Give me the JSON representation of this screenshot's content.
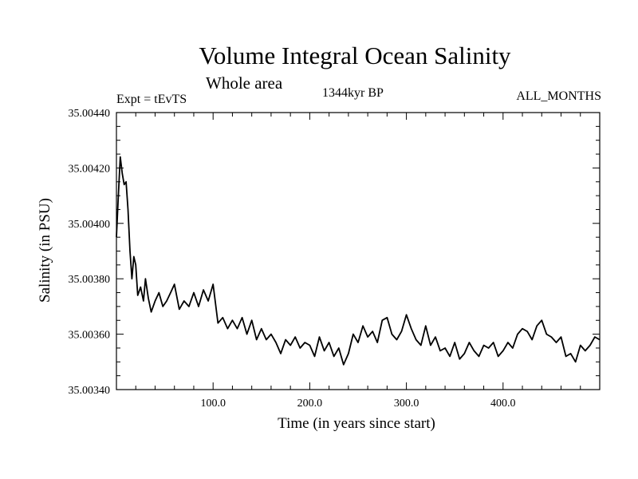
{
  "chart_data": {
    "type": "line",
    "title": "Volume Integral Ocean Salinity",
    "subtitle": "Whole area",
    "annotations": {
      "left": "Expt = tEvTS",
      "center": "1344kyr BP",
      "right": "ALL_MONTHS"
    },
    "xlabel": "Time (in years since start)",
    "ylabel": "Salinity (in PSU)",
    "xlim": [
      0,
      500
    ],
    "ylim": [
      35.0034,
      35.0044
    ],
    "x_ticks": [
      100,
      200,
      300,
      400
    ],
    "x_tick_labels": [
      "100.0",
      "200.0",
      "300.0",
      "400.0"
    ],
    "y_ticks": [
      35.0034,
      35.0036,
      35.0038,
      35.004,
      35.0042,
      35.0044
    ],
    "y_tick_labels": [
      "35.00340",
      "35.00360",
      "35.00380",
      "35.00400",
      "35.00420",
      "35.00440"
    ],
    "series": [
      {
        "name": "Salinity",
        "color": "#000000",
        "x": [
          0,
          2,
          4,
          6,
          8,
          10,
          12,
          14,
          16,
          18,
          20,
          22,
          25,
          28,
          30,
          33,
          36,
          40,
          44,
          48,
          52,
          56,
          60,
          65,
          70,
          75,
          80,
          85,
          90,
          95,
          100,
          105,
          110,
          115,
          120,
          125,
          130,
          135,
          140,
          145,
          150,
          155,
          160,
          165,
          170,
          175,
          180,
          185,
          190,
          195,
          200,
          205,
          210,
          215,
          220,
          225,
          230,
          235,
          240,
          245,
          250,
          255,
          260,
          265,
          270,
          275,
          280,
          285,
          290,
          295,
          300,
          305,
          310,
          315,
          320,
          325,
          330,
          335,
          340,
          345,
          350,
          355,
          360,
          365,
          370,
          375,
          380,
          385,
          390,
          395,
          400,
          405,
          410,
          415,
          420,
          425,
          430,
          435,
          440,
          445,
          450,
          455,
          460,
          465,
          470,
          475,
          480,
          485,
          490,
          495,
          500
        ],
        "y": [
          35.00395,
          35.0041,
          35.00424,
          35.00418,
          35.00414,
          35.00415,
          35.00405,
          35.0039,
          35.0038,
          35.00388,
          35.00385,
          35.00374,
          35.00377,
          35.00372,
          35.0038,
          35.00373,
          35.00368,
          35.00372,
          35.00375,
          35.0037,
          35.00372,
          35.00375,
          35.00378,
          35.00369,
          35.00372,
          35.0037,
          35.00375,
          35.0037,
          35.00376,
          35.00372,
          35.00378,
          35.00364,
          35.00366,
          35.00362,
          35.00365,
          35.00362,
          35.00366,
          35.0036,
          35.00365,
          35.00358,
          35.00362,
          35.00358,
          35.0036,
          35.00357,
          35.00353,
          35.00358,
          35.00356,
          35.00359,
          35.00355,
          35.00357,
          35.00356,
          35.00352,
          35.00359,
          35.00354,
          35.00357,
          35.00352,
          35.00355,
          35.00349,
          35.00353,
          35.0036,
          35.00357,
          35.00363,
          35.00359,
          35.00361,
          35.00357,
          35.00365,
          35.00366,
          35.0036,
          35.00358,
          35.00361,
          35.00367,
          35.00362,
          35.00358,
          35.00356,
          35.00363,
          35.00356,
          35.00359,
          35.00354,
          35.00355,
          35.00352,
          35.00357,
          35.00351,
          35.00353,
          35.00357,
          35.00354,
          35.00352,
          35.00356,
          35.00355,
          35.00357,
          35.00352,
          35.00354,
          35.00357,
          35.00355,
          35.0036,
          35.00362,
          35.00361,
          35.00358,
          35.00363,
          35.00365,
          35.0036,
          35.00359,
          35.00357,
          35.00359,
          35.00352,
          35.00353,
          35.0035,
          35.00356,
          35.00354,
          35.00356,
          35.00359,
          35.00358
        ]
      }
    ],
    "grid": false,
    "legend": "none"
  }
}
